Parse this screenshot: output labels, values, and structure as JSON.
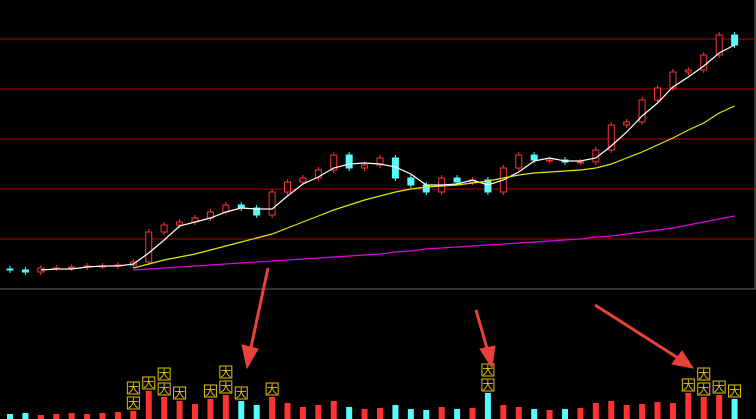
{
  "chart_data": {
    "type": "candlestick",
    "categories": [
      null,
      null,
      null,
      null,
      null,
      null,
      null,
      null,
      null,
      null,
      null,
      null,
      null,
      null,
      null,
      null,
      null,
      null,
      null,
      null,
      null,
      null,
      null,
      null,
      null,
      null,
      null,
      null,
      null,
      null,
      null,
      null,
      null,
      null,
      null,
      null,
      null,
      null,
      null,
      null,
      null,
      null,
      null,
      null,
      null,
      null,
      null,
      null
    ],
    "open": [
      20,
      19,
      17,
      21,
      21,
      22,
      23,
      23,
      24,
      27,
      57,
      64,
      67,
      71,
      77,
      84,
      81,
      74,
      97,
      107,
      111,
      119,
      134,
      121,
      124,
      131,
      111,
      104,
      97,
      111,
      107,
      109,
      97,
      121,
      134,
      129,
      129,
      127,
      127,
      139,
      164,
      167,
      189,
      201,
      217,
      219,
      234,
      254
    ],
    "high": [
      23,
      22,
      24,
      24,
      25,
      26,
      26,
      27,
      30,
      60,
      67,
      70,
      74,
      80,
      87,
      87,
      84,
      100,
      110,
      114,
      122,
      137,
      137,
      127,
      134,
      134,
      114,
      107,
      114,
      114,
      112,
      112,
      124,
      137,
      137,
      132,
      132,
      130,
      142,
      167,
      170,
      192,
      204,
      220,
      222,
      237,
      257,
      257
    ],
    "low": [
      16,
      14,
      14,
      18,
      18,
      19,
      20,
      20,
      21,
      24,
      54,
      61,
      64,
      68,
      74,
      78,
      71,
      71,
      94,
      104,
      108,
      116,
      118,
      118,
      121,
      108,
      101,
      94,
      94,
      104,
      104,
      94,
      94,
      118,
      126,
      126,
      124,
      124,
      124,
      136,
      161,
      164,
      186,
      198,
      214,
      216,
      231,
      241
    ],
    "close": [
      19,
      17,
      21,
      21,
      22,
      23,
      23,
      24,
      27,
      57,
      64,
      67,
      71,
      77,
      84,
      81,
      74,
      97,
      107,
      111,
      119,
      134,
      121,
      124,
      131,
      111,
      104,
      97,
      111,
      107,
      109,
      97,
      121,
      134,
      129,
      129,
      127,
      127,
      139,
      164,
      167,
      189,
      201,
      217,
      219,
      234,
      254,
      244
    ],
    "up_color": "#ff3232",
    "down_color": "#54fcfc",
    "series": [
      {
        "color": "#ffffff",
        "values": [
          null,
          null,
          19,
          20,
          20,
          22,
          23,
          23,
          25,
          36,
          49,
          63,
          67,
          71,
          77,
          81,
          80,
          80,
          93,
          105,
          112,
          121,
          125,
          126,
          125,
          122,
          115,
          104,
          104,
          105,
          109,
          104,
          109,
          117,
          128,
          131,
          128,
          128,
          131,
          143,
          157,
          173,
          186,
          202,
          212,
          223,
          236,
          244
        ]
      },
      {
        "color": "#e6e600",
        "values": [
          null,
          null,
          null,
          null,
          null,
          null,
          null,
          null,
          21,
          25,
          29,
          32,
          35,
          39,
          43,
          47,
          51,
          55,
          61,
          67,
          73,
          79,
          84,
          89,
          93,
          97,
          100,
          102,
          103,
          104,
          106,
          108,
          111,
          114,
          116,
          117,
          118,
          119,
          121,
          125,
          131,
          137,
          144,
          151,
          159,
          166,
          176,
          183
        ]
      },
      {
        "color": "#e000e0",
        "values": [
          null,
          null,
          null,
          null,
          null,
          null,
          null,
          null,
          19,
          20,
          21,
          22,
          23,
          24,
          25,
          26,
          27,
          28,
          29,
          30,
          31,
          32,
          33,
          34,
          35,
          37,
          38,
          40,
          41,
          42,
          43,
          44,
          45,
          46,
          47,
          48,
          49,
          50,
          52,
          53,
          55,
          57,
          59,
          61,
          64,
          67,
          70,
          73
        ]
      }
    ],
    "ylim": [
      0,
      289
    ],
    "yticks": [
      50,
      100,
      150,
      200,
      250
    ],
    "grid": true,
    "grid_color": "#b00000",
    "volume": {
      "values": [
        5,
        6,
        4,
        5,
        6,
        5,
        6,
        7,
        8,
        28,
        22,
        18,
        15,
        20,
        24,
        18,
        14,
        22,
        16,
        12,
        14,
        18,
        12,
        10,
        11,
        14,
        10,
        9,
        12,
        10,
        11,
        26,
        14,
        12,
        10,
        9,
        10,
        11,
        16,
        18,
        14,
        15,
        17,
        16,
        26,
        22,
        24,
        20
      ],
      "ylim": [
        0,
        120
      ]
    },
    "signals": [
      {
        "label": "大",
        "index": 8
      },
      {
        "label": "大",
        "index": 8
      },
      {
        "label": "大",
        "index": 9
      },
      {
        "label": "大",
        "index": 10
      },
      {
        "label": "大",
        "index": 10
      },
      {
        "label": "大",
        "index": 11
      },
      {
        "label": "大",
        "index": 13
      },
      {
        "label": "大",
        "index": 14
      },
      {
        "label": "大",
        "index": 14
      },
      {
        "label": "大",
        "index": 15
      },
      {
        "label": "大",
        "index": 17
      },
      {
        "label": "大",
        "index": 31
      },
      {
        "label": "大",
        "index": 31
      },
      {
        "label": "大",
        "index": 44
      },
      {
        "label": "大",
        "index": 45
      },
      {
        "label": "大",
        "index": 45
      },
      {
        "label": "大",
        "index": 46
      },
      {
        "label": "大",
        "index": 47
      }
    ]
  }
}
